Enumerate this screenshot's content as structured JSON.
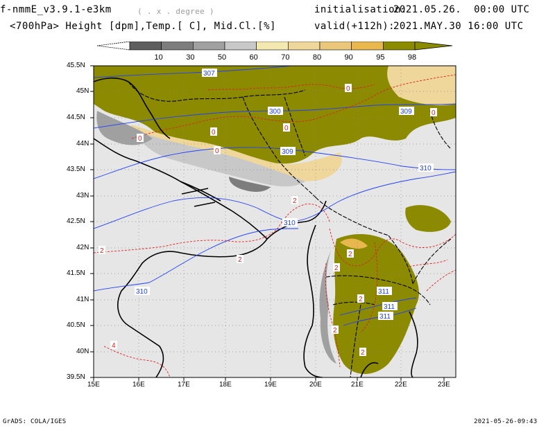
{
  "header": {
    "title": "f-nmmE_v3.9.1-e3km",
    "title_note": "( . x . degree )",
    "subtitle": "<700hPa> Height [dpm],Temp.[ C], Mid.Cl.[%]",
    "init_label": "initialisation:",
    "init_value": "2021.05.26.  00:00 UTC",
    "valid_label": "valid(+112h):",
    "valid_value": "2021.MAY.30 16:00 UTC"
  },
  "colorbar": {
    "levels": [
      "10",
      "30",
      "50",
      "60",
      "70",
      "80",
      "90",
      "95",
      "98"
    ],
    "colors": [
      "#5f5f5f",
      "#7d7d7d",
      "#a0a0a0",
      "#c8c8c8",
      "#f2e8b0",
      "#efd69a",
      "#ebc77c",
      "#e8b74e",
      "#8b8a00"
    ]
  },
  "map": {
    "lon_labels": [
      "15E",
      "16E",
      "17E",
      "18E",
      "19E",
      "20E",
      "21E",
      "22E",
      "23E"
    ],
    "lat_labels": [
      "45.5N",
      "45N",
      "44.5N",
      "44N",
      "43.5N",
      "43N",
      "42.5N",
      "42N",
      "41.5N",
      "41N",
      "40.5N",
      "40N",
      "39.5N"
    ],
    "height_contour_labels": [
      "307",
      "300",
      "309",
      "309",
      "310",
      "310",
      "310",
      "311",
      "311",
      "311"
    ],
    "temp_contour_labels": [
      "0",
      "0",
      "0",
      "0",
      "0",
      "0",
      "2",
      "2",
      "2",
      "2",
      "2",
      "2",
      "2",
      "2",
      "4"
    ],
    "colors": {
      "sea_land_bg": "#e6e6e6",
      "height_contour": "#1e40ff",
      "temp_contour": "#e02020",
      "coastline": "#000000",
      "cloud_high": "#8b8a00"
    }
  },
  "footer": {
    "left": "GrADS: COLA/IGES",
    "right": "2021-05-26-09:43"
  }
}
